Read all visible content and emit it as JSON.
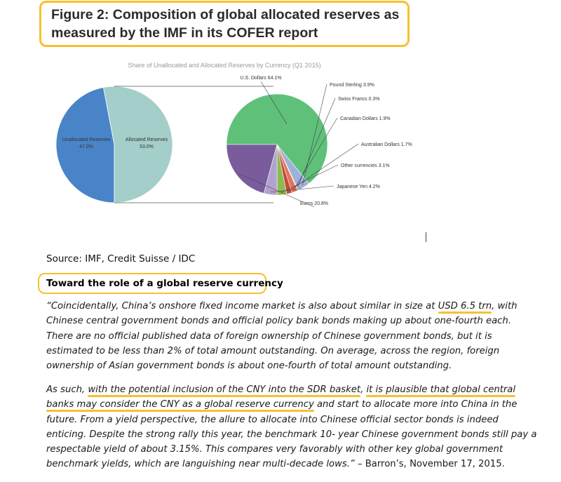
{
  "figure": {
    "title_line1": "Figure 2: Composition of global allocated reserves as",
    "title_line2": "measured by the IMF in its COFER report"
  },
  "colors": {
    "highlight": "#f6c12d",
    "unallocated": "#4a84c8",
    "allocated": "#a3cec9",
    "usd": "#5fc07a",
    "eur": "#7a5c9c"
  },
  "chart_data": [
    {
      "type": "pie",
      "title": "Share of Unallocated and Allocated Reserves by Currency (Q1 2015)",
      "slices": [
        {
          "label": "Unallocated Reserves",
          "value_label": "47.0%",
          "value": 47.0,
          "color": "#4a84c8"
        },
        {
          "label": "Allocated Reserves",
          "value_label": "53.0%",
          "value": 53.0,
          "color": "#a3cec9"
        }
      ]
    },
    {
      "type": "pie",
      "title": "",
      "slices": [
        {
          "label": "U.S. Dollars 64.1%",
          "value": 64.1,
          "color": "#5fc07a"
        },
        {
          "label": "Pound Sterling 3.9%",
          "value": 3.9,
          "color": "#9db1d9"
        },
        {
          "label": "Swiss Francs 0.3%",
          "value": 0.3,
          "color": "#e8c9a0"
        },
        {
          "label": "Canadian Dollars 1.9%",
          "value": 1.9,
          "color": "#e3735b"
        },
        {
          "label": "Australian Dollars 1.7%",
          "value": 1.7,
          "color": "#c64a3d"
        },
        {
          "label": "Other currencies 3.1%",
          "value": 3.1,
          "color": "#8cbb53"
        },
        {
          "label": "Japanese Yen 4.2%",
          "value": 4.2,
          "color": "#b2a2d0"
        },
        {
          "label": "Euros 20.8%",
          "value": 20.8,
          "color": "#7a5c9c"
        }
      ]
    }
  ],
  "source": "Source: IMF, Credit Suisse / IDC",
  "section_title": "Toward the role of a global reserve currency",
  "para1": {
    "l1a": "“Coincidentally, China’s onshore fixed income market is also about similar in size at ",
    "l1b": "USD 6.5 trn",
    "l1c": ", with",
    "l2": "Chinese central government bonds and official policy bank bonds making up about one-fourth each.",
    "l3": "There are no official published data of foreign ownership of Chinese government bonds, but it is",
    "l4": "estimated to be less than 2% of total amount outstanding. On average, across the region, foreign",
    "l5": "ownership of Asian government bonds is about one-fourth of total amount outstanding."
  },
  "para2": {
    "l1a": "As such, ",
    "l1b": "with the potential inclusion of the CNY into the SDR basket",
    "l1c": ", ",
    "l1d": "it is plausible that global central",
    "l2a": "banks may consider the CNY as a global reserve currency",
    "l2b": " and start to allocate more into China in the",
    "l3": "future. From a yield perspective, the allure to allocate into Chinese official sector bonds is indeed",
    "l4": "enticing. Despite the strong rally this year, the benchmark 10- year Chinese government bonds still pay a",
    "l5": "respectable yield of about 3.15%. This compares very favorably with other key global government",
    "l6a": "benchmark yields, which are languishing near multi-decade lows.”",
    "l6b": " – Barron’s, November 17, 2015."
  }
}
